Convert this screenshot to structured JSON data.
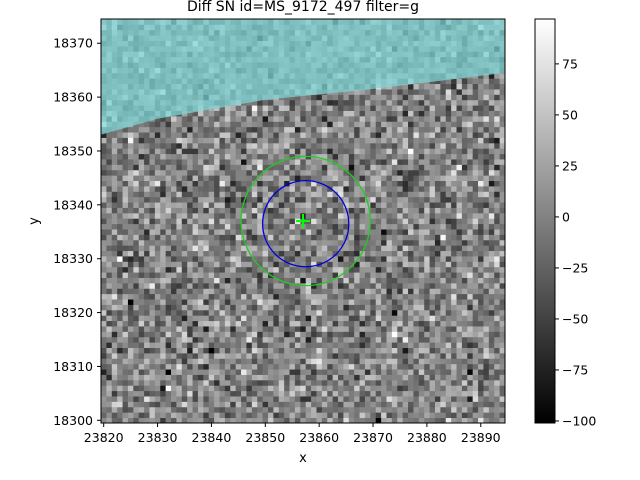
{
  "chart_data": {
    "type": "heatmap",
    "title": "Diff SN id=MS_9172_497 filter=g",
    "xlabel": "x",
    "ylabel": "y",
    "xlim": [
      23819.5,
      23894.5
    ],
    "ylim": [
      18299.5,
      18374.5
    ],
    "x_ticks": [
      23820,
      23830,
      23840,
      23850,
      23860,
      23870,
      23880,
      23890
    ],
    "y_ticks": [
      18300,
      18310,
      18320,
      18330,
      18340,
      18350,
      18360,
      18370
    ],
    "colormap": "gray",
    "color_range": [
      -101,
      97
    ],
    "colorbar_ticks": [
      75,
      50,
      25,
      0,
      -25,
      -50,
      -75,
      -100
    ],
    "colorbar_tick_labels": [
      "75",
      "50",
      "25",
      "0",
      "−25",
      "−50",
      "−75",
      "−100"
    ],
    "pixel_stats": {
      "mean": 0,
      "std": 30
    },
    "masked_region": {
      "color": "#7fd3d3",
      "opacity": 0.75,
      "boundary": [
        [
          23819.5,
          18353.0
        ],
        [
          23830,
          18356.0
        ],
        [
          23850,
          18359.5
        ],
        [
          23870,
          18361.5
        ],
        [
          23894.5,
          18364.5
        ]
      ],
      "side": "above"
    },
    "marker": {
      "shape": "plus",
      "x": 23857,
      "y": 18337,
      "color": "#00ff00"
    },
    "circles": [
      {
        "x": 23857.5,
        "y": 18337,
        "r": 12,
        "color": "#22cc22"
      },
      {
        "x": 23857.5,
        "y": 18336.5,
        "r": 8,
        "color": "#0000dd"
      }
    ]
  }
}
